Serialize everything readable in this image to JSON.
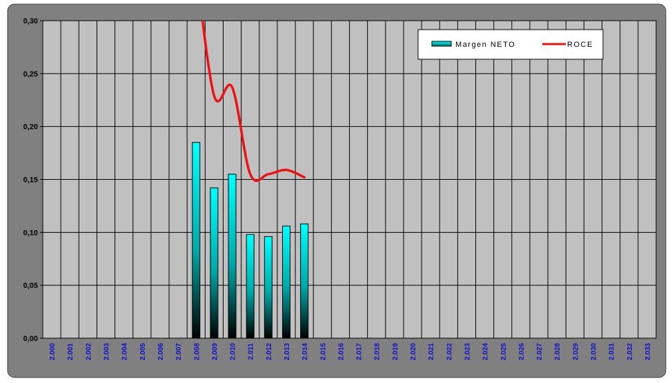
{
  "chart_data": {
    "type": "bar",
    "categories": [
      "2.000",
      "2.001",
      "2.002",
      "2.003",
      "2.004",
      "2.005",
      "2.006",
      "2.007",
      "2.008",
      "2.009",
      "2.010",
      "2.011",
      "2.012",
      "2.013",
      "2.014",
      "2.015",
      "2.016",
      "2.017",
      "2.018",
      "2.019",
      "2.020",
      "2.021",
      "2.022",
      "2.023",
      "2.024",
      "2.025",
      "2.026",
      "2.027",
      "2.028",
      "2.029",
      "2.030",
      "2.031",
      "2.032",
      "2.033"
    ],
    "ylim": [
      0,
      0.3
    ],
    "y_ticks": [
      "0,00",
      "0,05",
      "0,10",
      "0,15",
      "0,20",
      "0,25",
      "0,30"
    ],
    "grid": true,
    "legend_position": "top-right",
    "series": [
      {
        "name": "Margen NETO",
        "type": "bar",
        "color": "#00ffff",
        "values": [
          null,
          null,
          null,
          null,
          null,
          null,
          null,
          null,
          0.185,
          0.142,
          0.155,
          0.098,
          0.096,
          0.106,
          0.108,
          null,
          null,
          null,
          null,
          null,
          null,
          null,
          null,
          null,
          null,
          null,
          null,
          null,
          null,
          null,
          null,
          null,
          null,
          null
        ]
      },
      {
        "name": "ROCE",
        "type": "line",
        "color": "#ee1111",
        "values": [
          null,
          null,
          null,
          null,
          null,
          null,
          null,
          null,
          0.35,
          0.229,
          0.237,
          0.155,
          0.155,
          0.159,
          0.152,
          null,
          null,
          null,
          null,
          null,
          null,
          null,
          null,
          null,
          null,
          null,
          null,
          null,
          null,
          null,
          null,
          null,
          null,
          null
        ]
      }
    ],
    "background_color": "#c0c0c0",
    "frame_color": "#808080"
  }
}
